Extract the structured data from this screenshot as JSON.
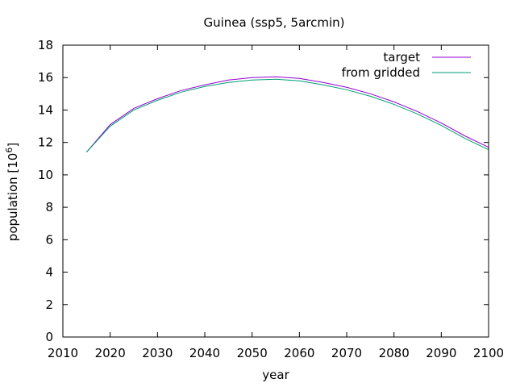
{
  "chart_data": {
    "type": "line",
    "title": "Guinea (ssp5, 5arcmin)",
    "xlabel": "year",
    "ylabel_main": "population [10",
    "ylabel_exp": "6",
    "ylabel_close": "]",
    "xlim": [
      2010,
      2100
    ],
    "ylim": [
      0,
      18
    ],
    "xticks": [
      2010,
      2020,
      2030,
      2040,
      2050,
      2060,
      2070,
      2080,
      2090,
      2100
    ],
    "yticks": [
      0,
      2,
      4,
      6,
      8,
      10,
      12,
      14,
      16,
      18
    ],
    "grid": false,
    "legend_position": "top-right",
    "x": [
      2015,
      2020,
      2025,
      2030,
      2035,
      2040,
      2045,
      2050,
      2055,
      2060,
      2065,
      2070,
      2075,
      2080,
      2085,
      2090,
      2095,
      2100
    ],
    "series": [
      {
        "name": "target",
        "color": "#9400d3",
        "values": [
          11.4,
          13.1,
          14.1,
          14.7,
          15.2,
          15.55,
          15.85,
          16.0,
          16.05,
          15.95,
          15.7,
          15.4,
          15.0,
          14.5,
          13.9,
          13.2,
          12.4,
          11.7
        ]
      },
      {
        "name": "from gridded",
        "color": "#009e73",
        "values": [
          11.4,
          13.0,
          14.0,
          14.6,
          15.1,
          15.45,
          15.7,
          15.85,
          15.9,
          15.8,
          15.55,
          15.25,
          14.85,
          14.35,
          13.75,
          13.05,
          12.25,
          11.55
        ]
      }
    ]
  }
}
